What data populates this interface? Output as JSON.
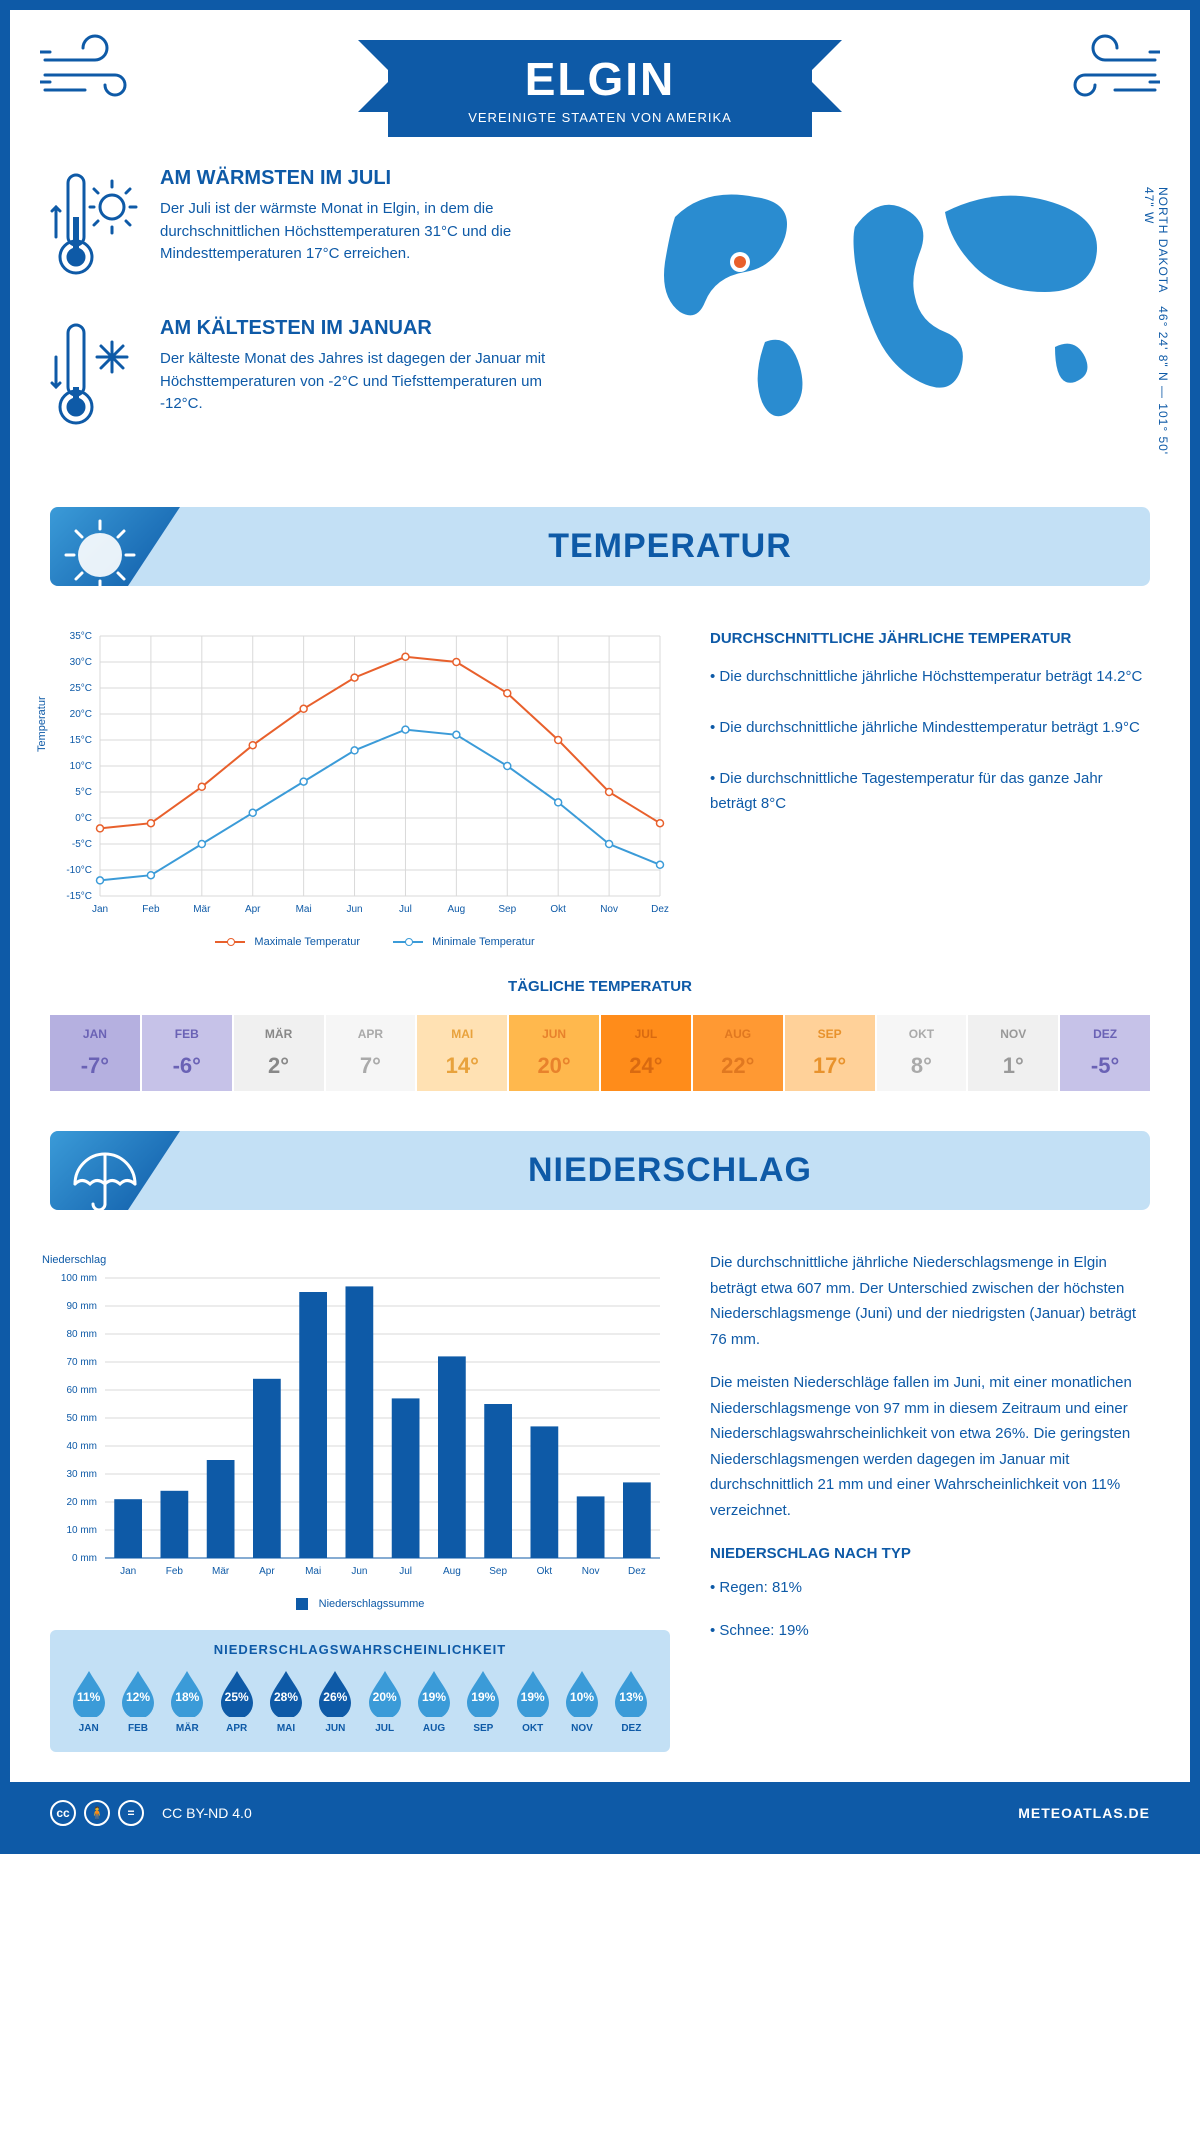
{
  "header": {
    "city": "ELGIN",
    "country": "VEREINIGTE STAATEN VON AMERIKA",
    "coords": "46° 24' 8\" N — 101° 50' 47\" W",
    "region": "NORTH DAKOTA"
  },
  "colors": {
    "primary": "#0e5aa7",
    "light_blue": "#c3e0f5",
    "mid_blue": "#3b9bd8",
    "max_line": "#e8602c",
    "min_line": "#3b9bd8",
    "grid": "#d9d9d9"
  },
  "warmest": {
    "title": "AM WÄRMSTEN IM JULI",
    "text": "Der Juli ist der wärmste Monat in Elgin, in dem die durchschnittlichen Höchsttemperaturen 31°C und die Mindesttemperaturen 17°C erreichen."
  },
  "coldest": {
    "title": "AM KÄLTESTEN IM JANUAR",
    "text": "Der kälteste Monat des Jahres ist dagegen der Januar mit Höchsttemperaturen von -2°C und Tiefsttemperaturen um -12°C."
  },
  "temp_section": {
    "banner": "TEMPERATUR",
    "info_title": "DURCHSCHNITTLICHE JÄHRLICHE TEMPERATUR",
    "bullets": [
      "• Die durchschnittliche jährliche Höchsttemperatur beträgt 14.2°C",
      "• Die durchschnittliche jährliche Mindesttemperatur beträgt 1.9°C",
      "• Die durchschnittliche Tagestemperatur für das ganze Jahr beträgt 8°C"
    ],
    "chart": {
      "ylabel": "Temperatur",
      "months": [
        "Jan",
        "Feb",
        "Mär",
        "Apr",
        "Mai",
        "Jun",
        "Jul",
        "Aug",
        "Sep",
        "Okt",
        "Nov",
        "Dez"
      ],
      "max": [
        -2,
        -1,
        6,
        14,
        21,
        27,
        31,
        30,
        24,
        15,
        5,
        -1
      ],
      "min": [
        -12,
        -11,
        -5,
        1,
        7,
        13,
        17,
        16,
        10,
        3,
        -5,
        -9
      ],
      "ymin": -15,
      "ymax": 35,
      "ystep": 5,
      "legend_max": "Maximale Temperatur",
      "legend_min": "Minimale Temperatur"
    },
    "daily_title": "TÄGLICHE TEMPERATUR",
    "daily": [
      {
        "m": "JAN",
        "v": "-7°",
        "bg": "#b5b0e0",
        "fg": "#6a62b5"
      },
      {
        "m": "FEB",
        "v": "-6°",
        "bg": "#c6c2e8",
        "fg": "#6a62b5"
      },
      {
        "m": "MÄR",
        "v": "2°",
        "bg": "#f0f0f0",
        "fg": "#888"
      },
      {
        "m": "APR",
        "v": "7°",
        "bg": "#f6f6f6",
        "fg": "#aaa"
      },
      {
        "m": "MAI",
        "v": "14°",
        "bg": "#ffe1b3",
        "fg": "#e8a23c"
      },
      {
        "m": "JUN",
        "v": "20°",
        "bg": "#ffb84d",
        "fg": "#e8822c"
      },
      {
        "m": "JUL",
        "v": "24°",
        "bg": "#ff8c1a",
        "fg": "#d96a10"
      },
      {
        "m": "AUG",
        "v": "22°",
        "bg": "#ff9933",
        "fg": "#e07820"
      },
      {
        "m": "SEP",
        "v": "17°",
        "bg": "#ffd199",
        "fg": "#e8922c"
      },
      {
        "m": "OKT",
        "v": "8°",
        "bg": "#f6f6f6",
        "fg": "#aaa"
      },
      {
        "m": "NOV",
        "v": "1°",
        "bg": "#f0f0f0",
        "fg": "#999"
      },
      {
        "m": "DEZ",
        "v": "-5°",
        "bg": "#c6c2e8",
        "fg": "#6a62b5"
      }
    ]
  },
  "precip_section": {
    "banner": "NIEDERSCHLAG",
    "chart": {
      "ylabel": "Niederschlag",
      "months": [
        "Jan",
        "Feb",
        "Mär",
        "Apr",
        "Mai",
        "Jun",
        "Jul",
        "Aug",
        "Sep",
        "Okt",
        "Nov",
        "Dez"
      ],
      "values_mm": [
        21,
        24,
        35,
        64,
        95,
        97,
        57,
        72,
        55,
        47,
        22,
        27
      ],
      "ymin": 0,
      "ymax": 100,
      "ystep": 10,
      "legend": "Niederschlagssumme",
      "bar_color": "#0e5aa7"
    },
    "text1": "Die durchschnittliche jährliche Niederschlagsmenge in Elgin beträgt etwa 607 mm. Der Unterschied zwischen der höchsten Niederschlagsmenge (Juni) und der niedrigsten (Januar) beträgt 76 mm.",
    "text2": "Die meisten Niederschläge fallen im Juni, mit einer monatlichen Niederschlagsmenge von 97 mm in diesem Zeitraum und einer Niederschlagswahrscheinlichkeit von etwa 26%. Die geringsten Niederschlagsmengen werden dagegen im Januar mit durchschnittlich 21 mm und einer Wahrscheinlichkeit von 11% verzeichnet.",
    "type_title": "NIEDERSCHLAG NACH TYP",
    "type_rain": "• Regen: 81%",
    "type_snow": "• Schnee: 19%",
    "prob_title": "NIEDERSCHLAGSWAHRSCHEINLICHKEIT",
    "prob": [
      {
        "m": "JAN",
        "v": "11%",
        "fill": "#3b9bd8"
      },
      {
        "m": "FEB",
        "v": "12%",
        "fill": "#3b9bd8"
      },
      {
        "m": "MÄR",
        "v": "18%",
        "fill": "#3b9bd8"
      },
      {
        "m": "APR",
        "v": "25%",
        "fill": "#0e5aa7"
      },
      {
        "m": "MAI",
        "v": "28%",
        "fill": "#0e5aa7"
      },
      {
        "m": "JUN",
        "v": "26%",
        "fill": "#0e5aa7"
      },
      {
        "m": "JUL",
        "v": "20%",
        "fill": "#3b9bd8"
      },
      {
        "m": "AUG",
        "v": "19%",
        "fill": "#3b9bd8"
      },
      {
        "m": "SEP",
        "v": "19%",
        "fill": "#3b9bd8"
      },
      {
        "m": "OKT",
        "v": "19%",
        "fill": "#3b9bd8"
      },
      {
        "m": "NOV",
        "v": "10%",
        "fill": "#3b9bd8"
      },
      {
        "m": "DEZ",
        "v": "13%",
        "fill": "#3b9bd8"
      }
    ]
  },
  "footer": {
    "license": "CC BY-ND 4.0",
    "brand": "METEOATLAS.DE"
  }
}
